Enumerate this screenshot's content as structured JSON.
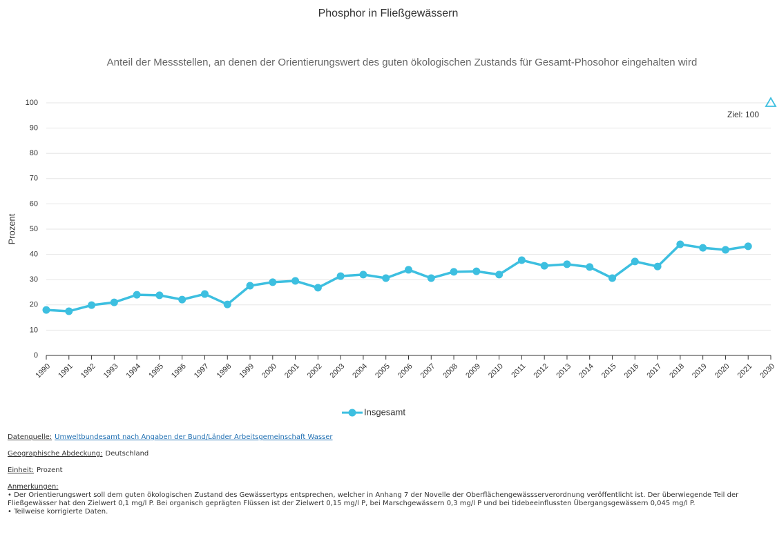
{
  "chart_data": {
    "type": "line",
    "title": "Phosphor in Fließgewässern",
    "subtitle": "Anteil der Messstellen, an denen der Orientierungswert des guten ökologischen Zustands für Gesamt-Phosohor eingehalten wird",
    "y_label": "Prozent",
    "categories": [
      "1990",
      "1991",
      "1992",
      "1993",
      "1994",
      "1995",
      "1996",
      "1997",
      "1998",
      "1999",
      "2000",
      "2001",
      "2002",
      "2003",
      "2004",
      "2005",
      "2006",
      "2007",
      "2008",
      "2009",
      "2010",
      "2011",
      "2012",
      "2013",
      "2014",
      "2015",
      "2016",
      "2017",
      "2018",
      "2019",
      "2020",
      "2021",
      "2030"
    ],
    "series": [
      {
        "name": "Insgesamt",
        "color": "#3dbfe0",
        "values": [
          18.0,
          17.5,
          19.9,
          21.0,
          24.0,
          23.8,
          22.1,
          24.3,
          20.2,
          27.6,
          29.0,
          29.5,
          26.8,
          31.4,
          32.0,
          30.6,
          33.9,
          30.6,
          33.1,
          33.3,
          32.0,
          37.7,
          35.5,
          36.1,
          35.0,
          30.6,
          37.2,
          35.2,
          44.0,
          42.6,
          41.8,
          43.2,
          null
        ]
      }
    ],
    "target": {
      "category": "2030",
      "value": 100,
      "value_label": "Ziel: 100",
      "color": "#3dbfe0"
    },
    "ylim": [
      0,
      100
    ],
    "yticks": [
      0,
      10,
      20,
      30,
      40,
      50,
      60,
      70,
      80,
      90,
      100
    ],
    "grid": true,
    "legend": "bottom"
  },
  "notes": {
    "source": {
      "label": "Datenquelle:",
      "text": "Umweltbundesamt nach Angaben der Bund/Länder Arbeitsgemeinschaft Wasser"
    },
    "coverage": {
      "label": "Geographische Abdeckung:",
      "text": "Deutschland"
    },
    "unit": {
      "label": "Einheit:",
      "text": "Prozent"
    },
    "remarks": {
      "label": "Anmerkungen:",
      "items": [
        "• Der Orientierungswert soll dem guten ökologischen Zustand des Gewässertyps entsprechen, welcher in Anhang 7 der Novelle der Oberflächengewässserverordnung veröffentlicht ist. Der überwiegende Teil der Fließgewässer hat den Zielwert 0,1 mg/l P. Bei organisch geprägten Flüssen ist der Zielwert 0,15 mg/l P, bei Marschgewässern 0,3 mg/l P und bei tidebeeinflussten Übergangsgewässern 0,045 mg/l P.",
        "• Teilweise korrigierte Daten."
      ]
    }
  }
}
